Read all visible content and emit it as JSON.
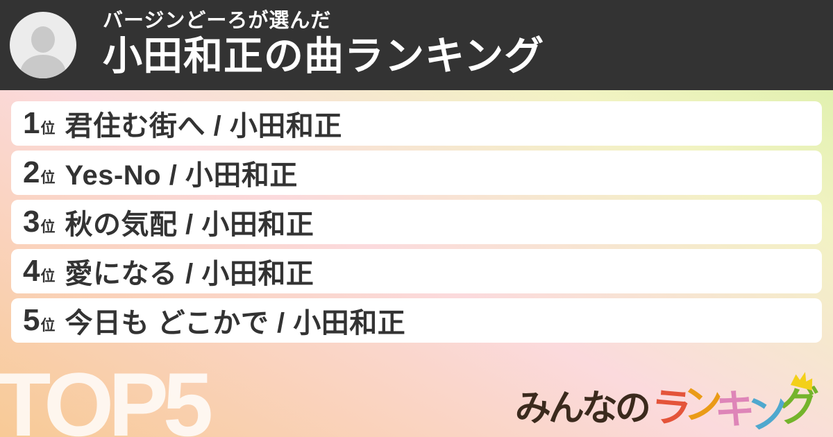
{
  "header": {
    "subtitle": "バージンどーろが選んだ",
    "title": "小田和正の曲ランキング"
  },
  "ranking": {
    "rank_suffix": "位",
    "items": [
      {
        "rank": "1",
        "label": "君住む街へ / 小田和正"
      },
      {
        "rank": "2",
        "label": "Yes-No / 小田和正"
      },
      {
        "rank": "3",
        "label": "秋の気配 / 小田和正"
      },
      {
        "rank": "4",
        "label": "愛になる / 小田和正"
      },
      {
        "rank": "5",
        "label": "今日も どこかで / 小田和正"
      }
    ]
  },
  "footer": {
    "watermark": "TOP5",
    "logo": {
      "prefix": "みんなの",
      "prefix_color": "#3b2a1d",
      "letters": [
        {
          "char": "ラ",
          "color": "#e4543a"
        },
        {
          "char": "ン",
          "color": "#ea9b17"
        },
        {
          "char": "キ",
          "color": "#de85b8"
        },
        {
          "char": "ン",
          "color": "#4fa8ce"
        },
        {
          "char": "グ",
          "color": "#74b42c"
        }
      ],
      "crown_icon": "crown-icon",
      "crown_color": "#f3d018"
    }
  },
  "colors": {
    "header_bg": "#333333",
    "header_text": "#ffffff",
    "row_bg": "#ffffff",
    "row_text": "#333333",
    "watermark_text": "rgba(255,255,255,0.82)",
    "gradient_stops": [
      "#d6efa3 0%",
      "#f2f3c3 26%",
      "#fbdadd 56%",
      "#f8ca96 100%"
    ],
    "avatar_bg": "#ececec",
    "avatar_person": "#c9c9c9"
  }
}
